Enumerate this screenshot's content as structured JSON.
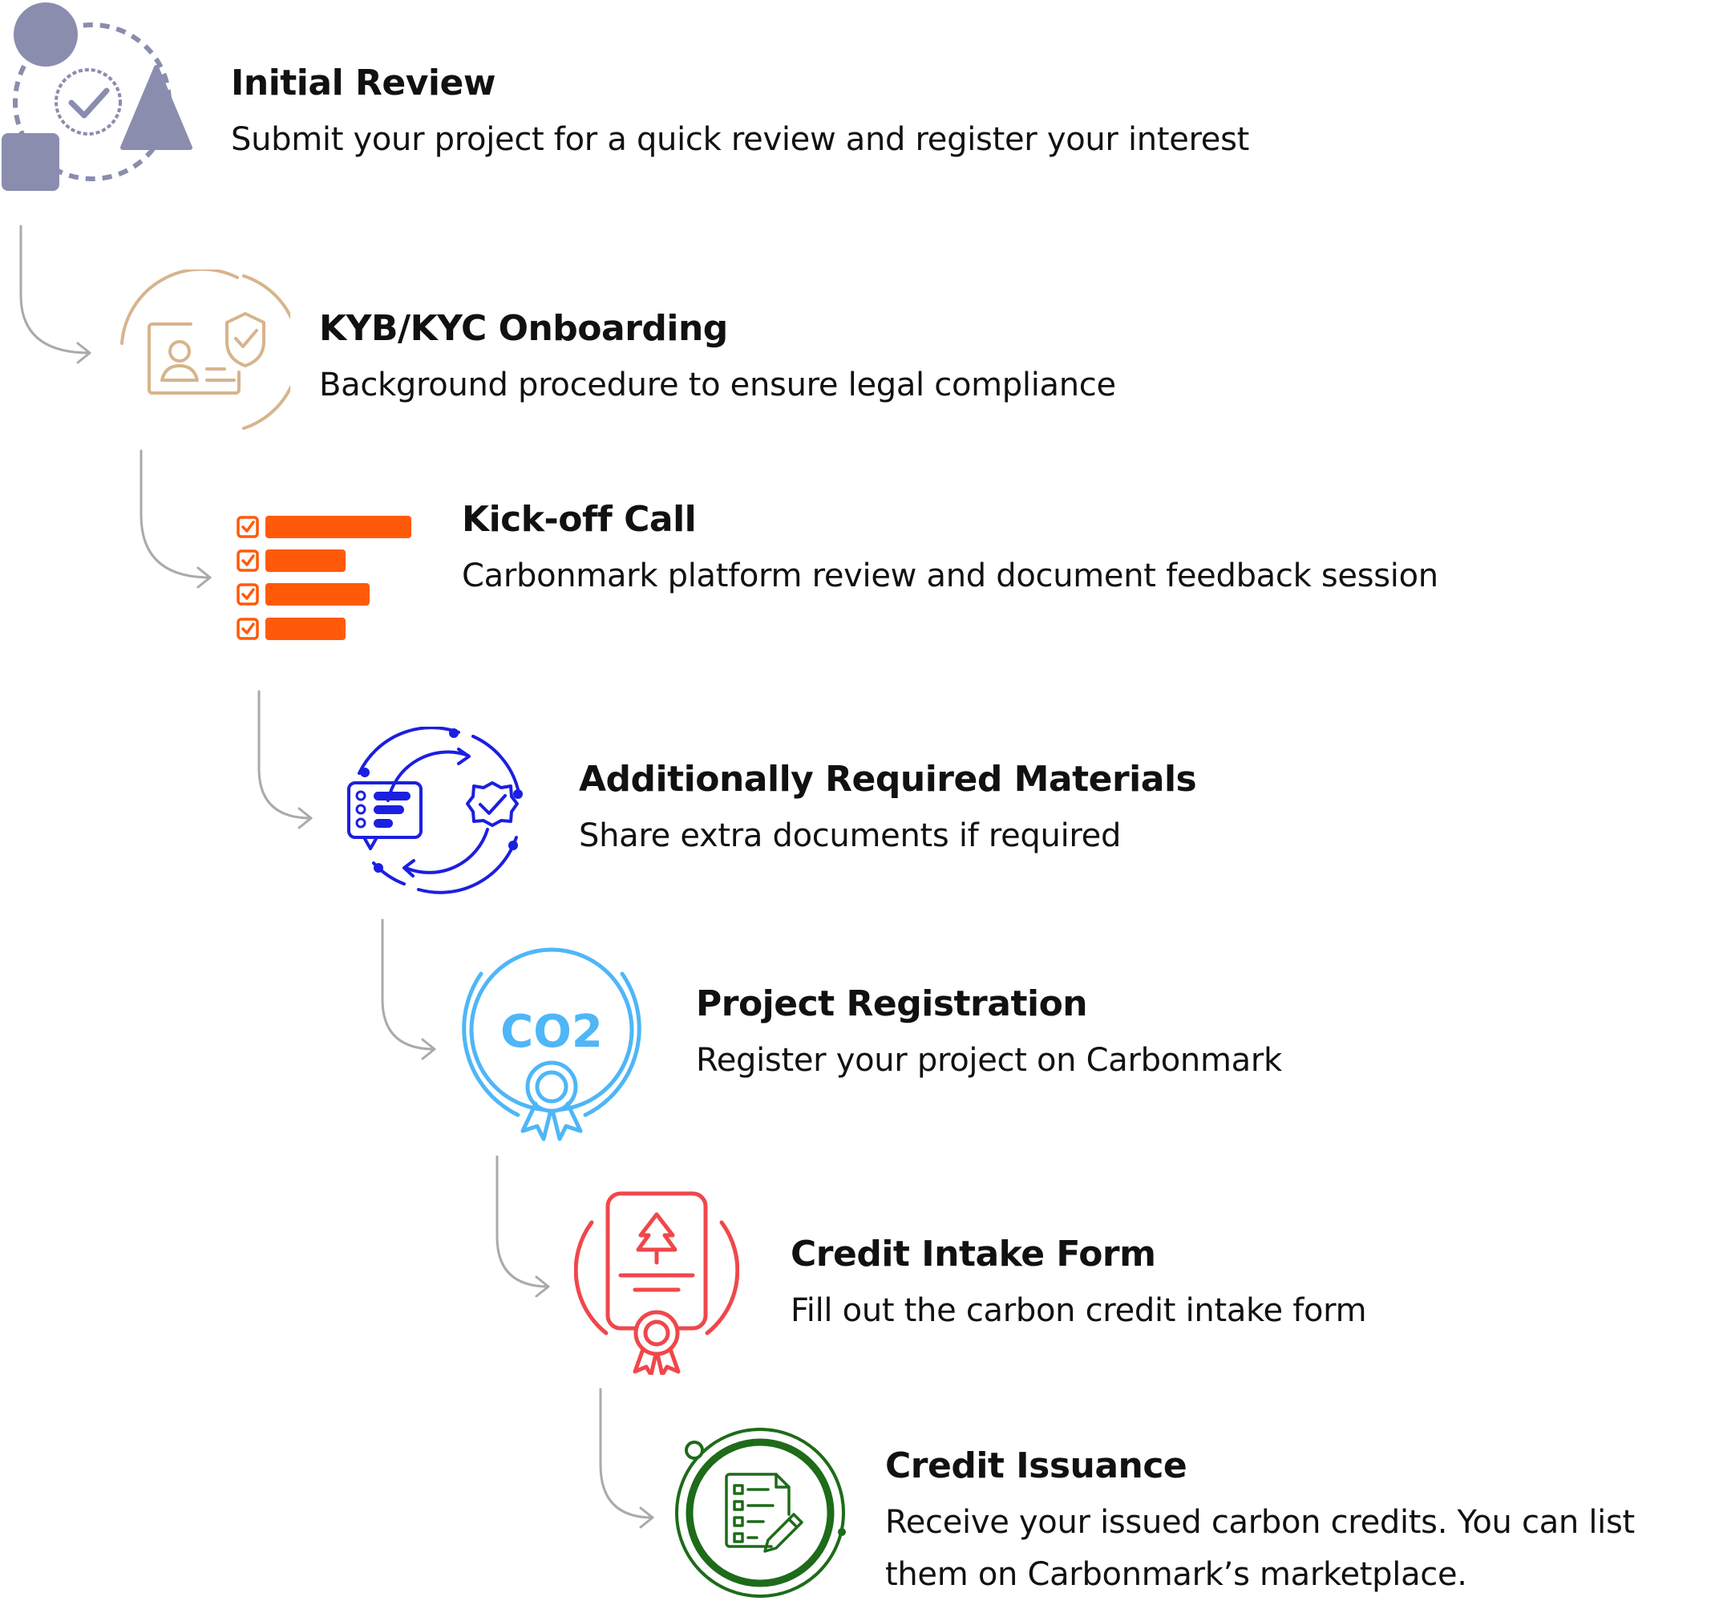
{
  "steps": [
    {
      "title": "Initial Review",
      "description": "Submit your project for a quick review and register your interest",
      "icon": "shapes-review-icon",
      "color": "#8A8DAE"
    },
    {
      "title": "KYB/KYC Onboarding",
      "description": "Background procedure to ensure legal compliance",
      "icon": "id-card-shield-icon",
      "color": "#D7B48C"
    },
    {
      "title": "Kick-off Call",
      "description": "Carbonmark platform review and document feedback session",
      "icon": "checklist-bars-icon",
      "color": "#FF5A0A"
    },
    {
      "title": "Additionally Required Materials",
      "description": "Share extra documents if required",
      "icon": "document-sync-icon",
      "color": "#1B1FE0"
    },
    {
      "title": "Project Registration",
      "description": "Register your project on Carbonmark",
      "icon": "co2-badge-icon",
      "color": "#4FB6F7",
      "badge_text": "CO2"
    },
    {
      "title": "Credit Intake Form",
      "description": "Fill out the carbon credit intake form",
      "icon": "tree-certificate-icon",
      "color": "#F0474B"
    },
    {
      "title": "Credit Issuance",
      "description": "Receive your issued carbon credits. You can list them on Carbonmark’s marketplace.",
      "icon": "document-edit-icon",
      "color": "#1E6B19"
    }
  ],
  "connector_color": "#AAAAAA"
}
